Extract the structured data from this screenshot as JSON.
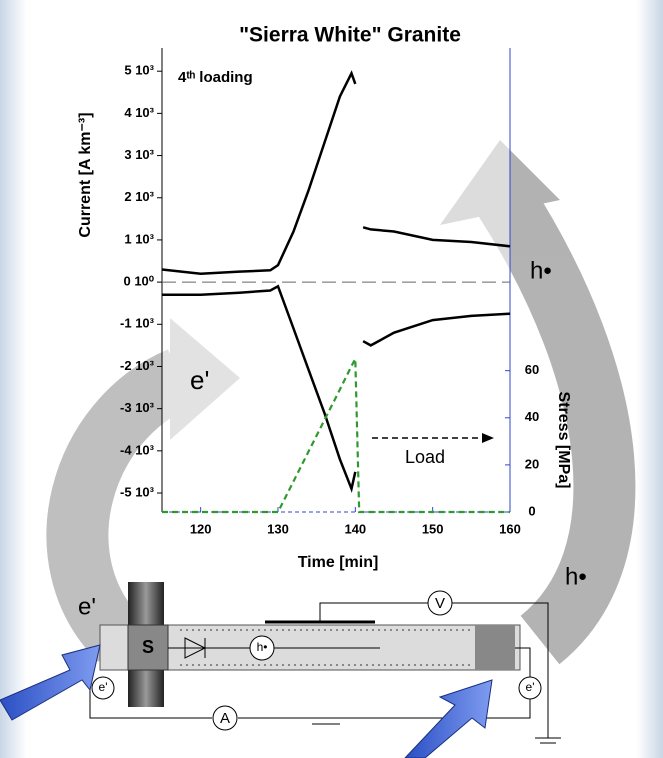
{
  "chart_data": {
    "type": "line",
    "title": "\"Sierra White\" Granite",
    "annotation": "4ᵗʰ loading",
    "load_label": "Load",
    "hole_label": "h•",
    "electron_label": "e'",
    "xlabel": "Time [min]",
    "ylabel": "Current [A km⁻³]",
    "y2label": "Stress [MPa]",
    "x": [
      115,
      120,
      125,
      129,
      130,
      132,
      134,
      136,
      138,
      139.5,
      140,
      140.5,
      141,
      142,
      145,
      150,
      155,
      160
    ],
    "series": [
      {
        "color": "#000000",
        "values": [
          300,
          200,
          250,
          280,
          400,
          1200,
          2200,
          3300,
          4400,
          4950,
          4700,
          null,
          1300,
          1250,
          1200,
          1000,
          950,
          850
        ]
      },
      {
        "color": "#000000",
        "values": [
          -300,
          -300,
          -250,
          -200,
          -100,
          -1100,
          -2100,
          -3100,
          -4200,
          -4900,
          -4500,
          null,
          -1400,
          -1500,
          -1200,
          -900,
          -800,
          -750
        ]
      },
      {
        "color": "#2e9a2e",
        "axis": "y2",
        "dashed": true,
        "values": [
          0,
          0,
          0,
          0,
          0,
          13,
          26,
          39,
          52,
          62,
          65,
          0,
          0,
          0,
          0,
          0,
          0,
          0
        ]
      }
    ],
    "xlim": [
      115,
      160
    ],
    "xticks": [
      120,
      130,
      140,
      150,
      160
    ],
    "ylim": [
      -5450,
      5550
    ],
    "yticks": [
      {
        "value": 5000,
        "label": "5 10³"
      },
      {
        "value": 4000,
        "label": "4 10³"
      },
      {
        "value": 3000,
        "label": "3 10³"
      },
      {
        "value": 2000,
        "label": "2 10³"
      },
      {
        "value": 1000,
        "label": "1 10³"
      },
      {
        "value": 0,
        "label": "0 10⁰"
      },
      {
        "value": -1000,
        "label": "-1 10³"
      },
      {
        "value": -2000,
        "label": "-2 10³"
      },
      {
        "value": -3000,
        "label": "-3 10³"
      },
      {
        "value": -4000,
        "label": "-4 10³"
      },
      {
        "value": -5000,
        "label": "-5 10³"
      }
    ],
    "y2lim": [
      0,
      197
    ],
    "y2ticks": [
      0,
      20,
      40,
      60
    ]
  },
  "diagram": {
    "sample": "S",
    "hole": "h•",
    "voltmeter": "V",
    "ammeter": "A",
    "electron_left": "e'",
    "electron_circle_left": "e'",
    "electron_circle_right": "e'",
    "hole_right": "h•"
  }
}
